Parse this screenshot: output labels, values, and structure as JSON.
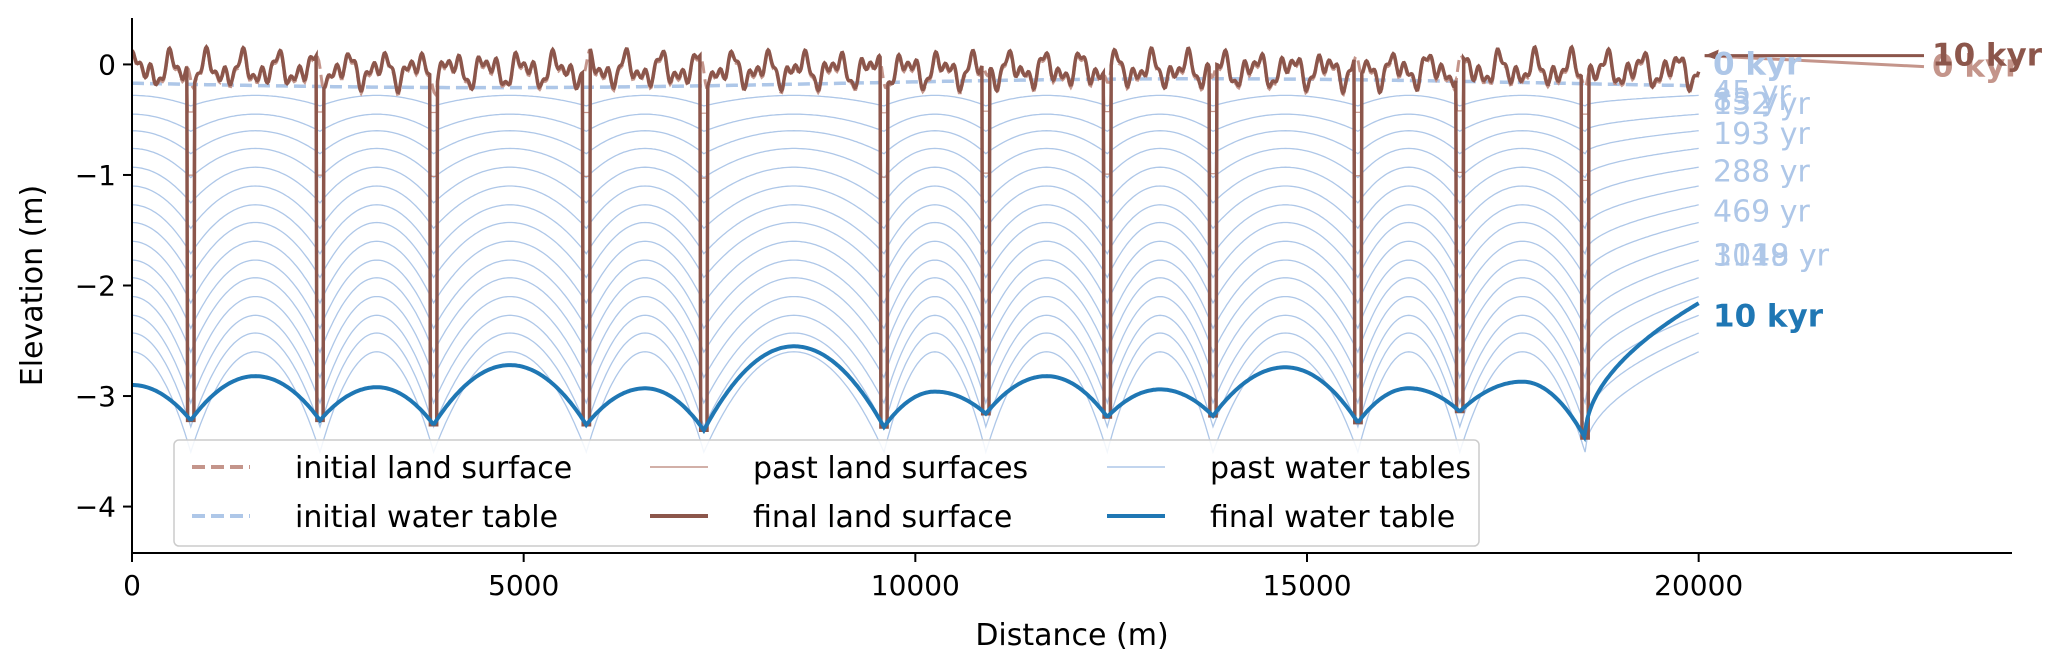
{
  "chart_data": {
    "type": "line",
    "xlabel": "Distance (m)",
    "ylabel": "Elevation (m)",
    "xlim": [
      0,
      24000
    ],
    "ylim": [
      -4.42,
      0.42
    ],
    "x_ticks": [
      0,
      5000,
      10000,
      15000,
      20000
    ],
    "x_tick_labels": [
      "0",
      "5000",
      "10000",
      "15000",
      "20000"
    ],
    "y_ticks": [
      0,
      -1,
      -2,
      -3,
      -4
    ],
    "y_tick_labels": [
      "0",
      "−1",
      "−2",
      "−3",
      "−4"
    ],
    "grid": false,
    "legend_placement": "lower-left",
    "colors": {
      "initial_land": "#c4958b",
      "final_land": "#8c564b",
      "past_land": "#c4958b",
      "initial_water": "#aec7e8",
      "past_water": "#aec7e8",
      "final_water": "#1f77b4"
    },
    "legend": [
      {
        "label": "initial land surface",
        "style": "dashed",
        "color": "#c4958b"
      },
      {
        "label": "initial water table",
        "style": "dashed",
        "color": "#aec7e8"
      },
      {
        "label": "past land surfaces",
        "style": "thin",
        "color": "#c4958b"
      },
      {
        "label": "final land surface",
        "style": "thick",
        "color": "#8c564b"
      },
      {
        "label": "past water tables",
        "style": "thin",
        "color": "#aec7e8"
      },
      {
        "label": "final water table",
        "style": "thick",
        "color": "#1f77b4"
      }
    ],
    "channel_positions": [
      750,
      2400,
      3850,
      5800,
      7300,
      9600,
      10900,
      12450,
      13800,
      15650,
      16950,
      18550
    ],
    "channel_final_depths": [
      -3.22,
      -3.22,
      -3.26,
      -3.26,
      -3.31,
      -3.28,
      -3.16,
      -3.19,
      -3.18,
      -3.24,
      -3.14,
      -3.38
    ],
    "domain_end": {
      "x": 20000,
      "final_water_table": -2.16
    },
    "final_water_table_peaks": [
      {
        "x": 0,
        "y": -2.9
      },
      {
        "x": 1575,
        "y": -2.82
      },
      {
        "x": 3125,
        "y": -2.92
      },
      {
        "x": 4825,
        "y": -2.72
      },
      {
        "x": 6550,
        "y": -2.93
      },
      {
        "x": 8450,
        "y": -2.55
      },
      {
        "x": 10250,
        "y": -2.96
      },
      {
        "x": 11675,
        "y": -2.82
      },
      {
        "x": 13125,
        "y": -2.94
      },
      {
        "x": 14725,
        "y": -2.74
      },
      {
        "x": 16300,
        "y": -2.93
      },
      {
        "x": 17750,
        "y": -2.87
      }
    ],
    "past_water_table_levels": [
      -0.28,
      -0.45,
      -0.6,
      -0.76,
      -0.93,
      -1.1,
      -1.27,
      -1.43,
      -1.6,
      -1.77,
      -1.93,
      -2.1,
      -2.27,
      -2.43,
      -2.6
    ],
    "land_surface_mean": -0.05,
    "initial_water_table_level": -0.15,
    "annotations": [
      {
        "label": "0 kyr",
        "y": -0.02,
        "color": "#c4958b",
        "weight": "bold",
        "arrow": true
      },
      {
        "label": "10 kyr",
        "y": 0.08,
        "color": "#8c564b",
        "weight": "bold",
        "arrow": true
      },
      {
        "label": "0 kyr",
        "y": 0.0,
        "color": "#aec7e8",
        "weight": "bold"
      },
      {
        "label": "45 yr",
        "y": -0.25,
        "color": "#aec7e8",
        "weight": "normal"
      },
      {
        "label": "85 yr",
        "y": -0.32,
        "color": "#aec7e8",
        "weight": "normal"
      },
      {
        "label": "132 yr",
        "y": -0.36,
        "color": "#aec7e8",
        "weight": "normal"
      },
      {
        "label": "193 yr",
        "y": -0.63,
        "color": "#aec7e8",
        "weight": "normal"
      },
      {
        "label": "288 yr",
        "y": -0.97,
        "color": "#aec7e8",
        "weight": "normal"
      },
      {
        "label": "469 yr",
        "y": -1.33,
        "color": "#aec7e8",
        "weight": "normal"
      },
      {
        "label": "1049 yr",
        "y": -1.73,
        "color": "#aec7e8",
        "weight": "normal"
      },
      {
        "label": "3118 yr",
        "y": -1.73,
        "color": "#aec7e8",
        "weight": "normal"
      },
      {
        "label": "10 kyr",
        "y": -2.28,
        "color": "#1f77b4",
        "weight": "bold"
      }
    ]
  }
}
